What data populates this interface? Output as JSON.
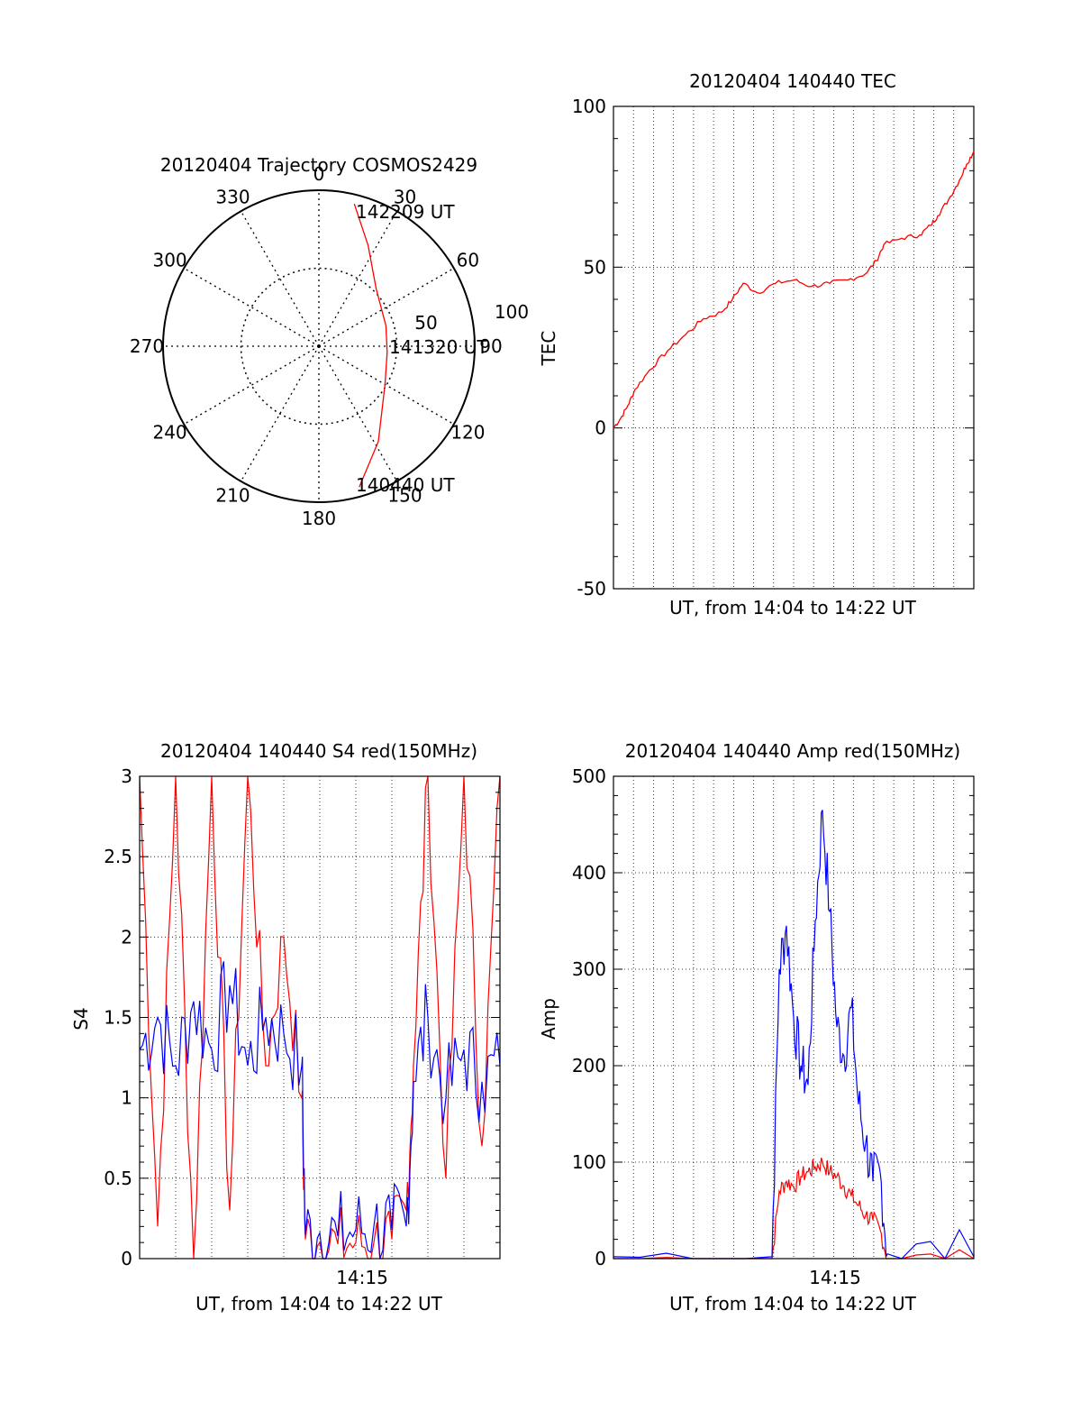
{
  "chart_data": [
    {
      "type": "polar",
      "title": "20120404 Trajectory COSMOS2429",
      "angle_labels": [
        "0",
        "30",
        "60",
        "90",
        "120",
        "150",
        "180",
        "210",
        "240",
        "270",
        "300",
        "330"
      ],
      "radial_labels": [
        "50",
        "100"
      ],
      "radial_range": [
        0,
        100
      ],
      "grid": true,
      "series": [
        {
          "color": "#ff0000",
          "points": [
            {
              "azimuth": 14,
              "radius": 94
            },
            {
              "azimuth": 26,
              "radius": 72
            },
            {
              "azimuth": 45,
              "radius": 52
            },
            {
              "azimuth": 73,
              "radius": 45
            },
            {
              "azimuth": 95,
              "radius": 44
            },
            {
              "azimuth": 120,
              "radius": 49
            },
            {
              "azimuth": 148,
              "radius": 72
            },
            {
              "azimuth": 164,
              "radius": 94
            }
          ]
        }
      ],
      "annotations": [
        "142209 UT",
        "141320 UT",
        "140440 UT"
      ]
    },
    {
      "type": "line",
      "title": "20120404 140440 TEC",
      "xlabel": "UT, from 14:04 to 14:22 UT",
      "ylabel": "TEC",
      "xlim": [
        0,
        1
      ],
      "ylim": [
        -50,
        100
      ],
      "yticks": [
        "100",
        "50",
        "0",
        "-50"
      ],
      "grid": true,
      "series": [
        {
          "color": "#ff0000",
          "x": [
            0.0,
            0.02,
            0.04,
            0.06,
            0.1,
            0.15,
            0.2,
            0.25,
            0.3,
            0.33,
            0.36,
            0.4,
            0.45,
            0.5,
            0.55,
            0.6,
            0.65,
            0.7,
            0.73,
            0.75,
            0.8,
            0.85,
            0.88,
            0.9,
            0.93,
            0.96,
            0.98,
            1.0
          ],
          "y": [
            0,
            3,
            7,
            12,
            18,
            24,
            29,
            34,
            36,
            40,
            45,
            42,
            45,
            46,
            44,
            45,
            46,
            48,
            52,
            57,
            59,
            60,
            63,
            66,
            71,
            77,
            82,
            86
          ]
        }
      ]
    },
    {
      "type": "line",
      "title": "20120404 140440 S4 red(150MHz)",
      "xlabel": "UT, from 14:04 to 14:22 UT",
      "ylabel": "S4",
      "xtick_labels": [
        "14:15"
      ],
      "ylim": [
        0,
        3
      ],
      "yticks": [
        "0",
        "0.5",
        "1",
        "1.5",
        "2",
        "2.5",
        "3"
      ],
      "grid": true,
      "series": [
        {
          "color": "#ff0000",
          "x": [
            0.0,
            0.05,
            0.1,
            0.15,
            0.2,
            0.25,
            0.3,
            0.35,
            0.4,
            0.45,
            0.46,
            0.5,
            0.55,
            0.6,
            0.65,
            0.7,
            0.74,
            0.76,
            0.8,
            0.85,
            0.9,
            0.95,
            1.0
          ],
          "y": [
            3.0,
            0.2,
            3.0,
            0.0,
            3.0,
            0.3,
            3.0,
            1.2,
            2.0,
            1.0,
            0.12,
            0.1,
            0.09,
            0.1,
            0.1,
            0.12,
            0.3,
            1.2,
            3.0,
            0.5,
            3.0,
            0.7,
            3.0
          ]
        },
        {
          "color": "#0000ff",
          "x": [
            0.0,
            0.05,
            0.1,
            0.15,
            0.2,
            0.25,
            0.3,
            0.35,
            0.4,
            0.45,
            0.46,
            0.5,
            0.55,
            0.6,
            0.65,
            0.7,
            0.74,
            0.76,
            0.8,
            0.85,
            0.9,
            0.95,
            1.0
          ],
          "y": [
            1.3,
            1.5,
            1.2,
            1.6,
            1.3,
            1.7,
            1.2,
            1.5,
            1.4,
            1.2,
            0.15,
            0.16,
            0.14,
            0.18,
            0.2,
            0.18,
            0.2,
            1.1,
            1.5,
            1.0,
            1.3,
            1.1,
            1.2
          ]
        }
      ]
    },
    {
      "type": "line",
      "title": "20120404 140440 Amp red(150MHz)",
      "xlabel": "UT, from 14:04 to 14:22 UT",
      "ylabel": "Amp",
      "xtick_labels": [
        "14:15"
      ],
      "ylim": [
        0,
        500
      ],
      "yticks": [
        "0",
        "100",
        "200",
        "300",
        "400",
        "500"
      ],
      "grid": true,
      "series": [
        {
          "color": "#ff0000",
          "x": [
            0.0,
            0.44,
            0.46,
            0.48,
            0.5,
            0.52,
            0.54,
            0.56,
            0.58,
            0.6,
            0.62,
            0.64,
            0.66,
            0.68,
            0.7,
            0.72,
            0.74,
            0.76,
            1.0
          ],
          "y": [
            0,
            0,
            70,
            80,
            75,
            85,
            90,
            95,
            100,
            90,
            85,
            75,
            65,
            55,
            45,
            40,
            30,
            0,
            0
          ]
        },
        {
          "color": "#0000ff",
          "x": [
            0.0,
            0.44,
            0.46,
            0.48,
            0.5,
            0.52,
            0.54,
            0.56,
            0.58,
            0.6,
            0.62,
            0.64,
            0.66,
            0.68,
            0.7,
            0.72,
            0.74,
            0.76,
            1.0
          ],
          "y": [
            2,
            2,
            300,
            345,
            250,
            200,
            180,
            350,
            465,
            360,
            240,
            210,
            260,
            160,
            120,
            80,
            90,
            5,
            2
          ]
        }
      ]
    }
  ]
}
